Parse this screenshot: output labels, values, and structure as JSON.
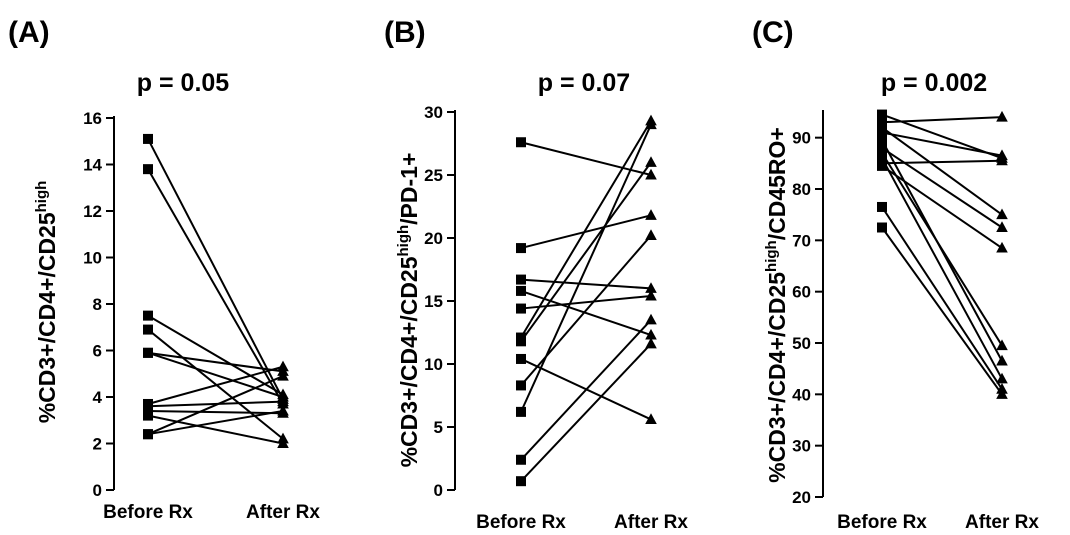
{
  "chart_data": [
    {
      "type": "line",
      "panel": "(A)",
      "title": "p = 0.05",
      "ylabel": {
        "before": "%CD3+/CD4+/CD25",
        "sup": "high",
        "after": ""
      },
      "categories": [
        "Before Rx",
        "After Rx"
      ],
      "ylim": [
        0,
        16
      ],
      "yticks": [
        0,
        2,
        4,
        6,
        8,
        10,
        12,
        14,
        16
      ],
      "markers": {
        "before": "square",
        "after": "triangle"
      },
      "pairs": [
        [
          15.1,
          3.9
        ],
        [
          13.8,
          3.7
        ],
        [
          7.5,
          4.1
        ],
        [
          6.9,
          2.2
        ],
        [
          5.9,
          4.0
        ],
        [
          5.9,
          5.1
        ],
        [
          3.7,
          5.3
        ],
        [
          3.6,
          3.8
        ],
        [
          3.4,
          3.3
        ],
        [
          3.2,
          2.0
        ],
        [
          2.4,
          3.4
        ],
        [
          2.4,
          4.9
        ]
      ]
    },
    {
      "type": "line",
      "panel": "(B)",
      "title": "p = 0.07",
      "ylabel": {
        "before": "%CD3+/CD4+/CD25",
        "sup": "high",
        "after": "/PD-1+"
      },
      "categories": [
        "Before Rx",
        "After Rx"
      ],
      "ylim": [
        0,
        30
      ],
      "yticks": [
        0,
        5,
        10,
        15,
        20,
        25,
        30
      ],
      "markers": {
        "before": "square",
        "after": "triangle"
      },
      "pairs": [
        [
          27.6,
          25.0
        ],
        [
          19.2,
          21.8
        ],
        [
          16.7,
          16.0
        ],
        [
          15.8,
          12.3
        ],
        [
          14.4,
          15.4
        ],
        [
          12.1,
          29.3
        ],
        [
          11.8,
          26.0
        ],
        [
          10.4,
          5.6
        ],
        [
          8.3,
          20.2
        ],
        [
          6.2,
          29.0
        ],
        [
          2.4,
          13.5
        ],
        [
          0.7,
          11.6
        ]
      ]
    },
    {
      "type": "line",
      "panel": "(C)",
      "title": "p = 0.002",
      "ylabel": {
        "before": "%CD3+/CD4+/CD25",
        "sup": "high",
        "after": "/CD45RO+"
      },
      "categories": [
        "Before Rx",
        "After Rx"
      ],
      "ylim": [
        20,
        95
      ],
      "yticks": [
        20,
        30,
        40,
        50,
        60,
        70,
        80,
        90
      ],
      "markers": {
        "before": "square",
        "after": "triangle"
      },
      "pairs": [
        [
          94.5,
          86.0
        ],
        [
          93.0,
          94.0
        ],
        [
          92.0,
          75.0
        ],
        [
          91.0,
          86.5
        ],
        [
          89.5,
          46.5
        ],
        [
          88.0,
          72.5
        ],
        [
          87.0,
          49.5
        ],
        [
          86.0,
          43.0
        ],
        [
          85.0,
          85.5
        ],
        [
          84.5,
          68.5
        ],
        [
          76.5,
          41.0
        ],
        [
          72.5,
          40.0
        ]
      ]
    }
  ]
}
